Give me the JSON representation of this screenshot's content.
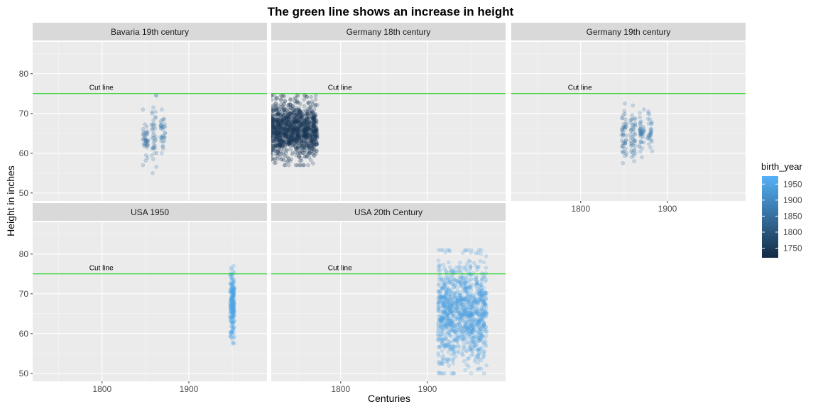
{
  "chart_data": {
    "type": "scatter",
    "title": "The green line shows an increase in height",
    "xlabel": "Centuries",
    "ylabel": "Height in inches",
    "xlim": [
      1720,
      1990
    ],
    "ylim": [
      48,
      88
    ],
    "x_ticks": [
      1800,
      1900
    ],
    "y_ticks": [
      50,
      60,
      70,
      80
    ],
    "grid": true,
    "hline": {
      "y": 75,
      "color": "#00cc00",
      "label": "Cut line",
      "label_x": 1800,
      "label_y": 76.5
    },
    "color_legend": {
      "title": "birth_year",
      "breaks": [
        1750,
        1800,
        1850,
        1900,
        1950
      ],
      "range": [
        1720,
        1975
      ],
      "low_color": "#132b43",
      "high_color": "#56b1f7",
      "placement": "right"
    },
    "panels": [
      {
        "label": "Bavaria  19th century",
        "row": 0,
        "col": 0,
        "show_x_axis": false,
        "show_y_axis": true,
        "groups": [
          {
            "x": 1850,
            "birth_year": 1850,
            "x_spread": 3,
            "y_min": 57,
            "y_max": 71,
            "n": 38
          },
          {
            "x": 1860,
            "birth_year": 1860,
            "x_spread": 3,
            "y_min": 55,
            "y_max": 74.5,
            "n": 38
          },
          {
            "x": 1870,
            "birth_year": 1870,
            "x_spread": 3,
            "y_min": 60,
            "y_max": 71,
            "n": 34
          }
        ]
      },
      {
        "label": "Germany 18th century",
        "row": 0,
        "col": 1,
        "show_x_axis": false,
        "show_y_axis": false,
        "groups": [
          {
            "x": 1745,
            "birth_year": 1745,
            "x_spread": 28,
            "y_min": 57,
            "y_max": 74.5,
            "n": 1300
          }
        ]
      },
      {
        "label": "Germany 19th century",
        "row": 0,
        "col": 2,
        "show_x_axis": true,
        "show_y_axis": false,
        "groups": [
          {
            "x": 1850,
            "birth_year": 1850,
            "x_spread": 3,
            "y_min": 57.5,
            "y_max": 72.5,
            "n": 44
          },
          {
            "x": 1860,
            "birth_year": 1860,
            "x_spread": 3,
            "y_min": 58,
            "y_max": 72,
            "n": 44
          },
          {
            "x": 1870,
            "birth_year": 1870,
            "x_spread": 3,
            "y_min": 59,
            "y_max": 71,
            "n": 40
          },
          {
            "x": 1880,
            "birth_year": 1880,
            "x_spread": 3,
            "y_min": 60.5,
            "y_max": 70.5,
            "n": 30
          }
        ]
      },
      {
        "label": "USA 1950",
        "row": 1,
        "col": 0,
        "show_x_axis": true,
        "show_y_axis": true,
        "groups": [
          {
            "x": 1950,
            "birth_year": 1950,
            "x_spread": 2.5,
            "y_min": 57.5,
            "y_max": 77,
            "n": 220
          }
        ]
      },
      {
        "label": "USA 20th Century",
        "row": 1,
        "col": 1,
        "show_x_axis": true,
        "show_y_axis": false,
        "groups": [
          {
            "x": 1940,
            "birth_year": 1940,
            "x_spread": 28,
            "y_min": 50,
            "y_max": 81,
            "n": 1100
          }
        ]
      }
    ]
  }
}
